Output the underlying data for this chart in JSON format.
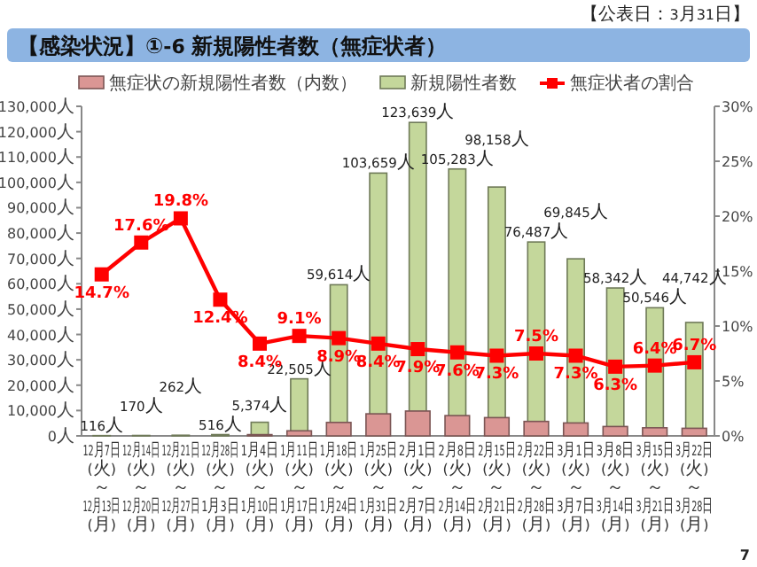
{
  "chart_data": {
    "type": "bar",
    "title": "【感染状況】①-6 新規陽性者数（無症状者）",
    "annotations": [
      "【公表日：3月31日】",
      "7"
    ],
    "categories": [
      "12月7日\n(火)\n～\n12月13日\n(月)",
      "12月14日\n(火)\n～\n12月20日\n(月)",
      "12月21日\n(火)\n～\n12月27日\n(月)",
      "12月28日\n(火)\n～\n1月3日\n(月)",
      "1月4日\n(火)\n～\n1月10日\n(月)",
      "1月11日\n(火)\n～\n1月17日\n(月)",
      "1月18日\n(火)\n～\n1月24日\n(月)",
      "1月25日\n(火)\n～\n1月31日\n(月)",
      "2月1日\n(火)\n～\n2月7日\n(月)",
      "2月8日\n(火)\n～\n2月14日\n(月)",
      "2月15日\n(火)\n～\n2月21日\n(月)",
      "2月22日\n(火)\n～\n2月28日\n(月)",
      "3月1日\n(火)\n～\n3月7日\n(月)",
      "3月8日\n(火)\n～\n3月14日\n(月)",
      "3月15日\n(火)\n～\n3月21日\n(月)",
      "3月22日\n(火)\n～\n3月28日\n(月)"
    ],
    "series": [
      {
        "name": "無症状の新規陽性者数（内数）",
        "color": "#da9694",
        "values": [
          null,
          null,
          null,
          null,
          500,
          2000,
          5300,
          8700,
          9800,
          8000,
          7200,
          5700,
          5100,
          3700,
          3200,
          3000
        ]
      },
      {
        "name": "新規陽性者数",
        "color": "#c4d79b",
        "values": [
          116,
          170,
          262,
          516,
          5374,
          22505,
          59614,
          103659,
          123639,
          105283,
          98158,
          76487,
          69845,
          58342,
          50546,
          44742
        ],
        "value_labels": [
          "116人",
          "170人",
          "262人",
          "516人",
          "5,374人",
          "22,505人",
          "59,614人",
          "103,659人",
          "123,639人",
          "105,283人",
          "98,158人",
          "76,487人",
          "69,845人",
          "58,342人",
          "50,546人",
          "44,742人"
        ]
      },
      {
        "name": "無症状者の割合",
        "type": "line",
        "axis": "y2",
        "color": "#ff0000",
        "values": [
          14.7,
          17.6,
          19.8,
          12.4,
          8.4,
          9.1,
          8.9,
          8.4,
          7.9,
          7.6,
          7.3,
          7.5,
          7.3,
          6.3,
          6.4,
          6.7
        ],
        "value_labels": [
          "14.7%",
          "17.6%",
          "19.8%",
          "12.4%",
          "8.4%",
          "9.1%",
          "8.9%",
          "8.4%",
          "7.9%",
          "7.6%",
          "7.3%",
          "7.5%",
          "7.3%",
          "6.3%",
          "6.4%",
          "6.7%"
        ]
      }
    ],
    "ylim": [
      0,
      130000
    ],
    "yticks": [
      {
        "value": 0,
        "label": "0人"
      },
      {
        "value": 10000,
        "label": "10,000人"
      },
      {
        "value": 20000,
        "label": "20,000人"
      },
      {
        "value": 30000,
        "label": "30,000人"
      },
      {
        "value": 40000,
        "label": "40,000人"
      },
      {
        "value": 50000,
        "label": "50,000人"
      },
      {
        "value": 60000,
        "label": "60,000人"
      },
      {
        "value": 70000,
        "label": "70,000人"
      },
      {
        "value": 80000,
        "label": "80,000人"
      },
      {
        "value": 90000,
        "label": "90,000人"
      },
      {
        "value": 100000,
        "label": "100,000人"
      },
      {
        "value": 110000,
        "label": "110,000人"
      },
      {
        "value": 120000,
        "label": "120,000人"
      },
      {
        "value": 130000,
        "label": "130,000人"
      }
    ],
    "y2lim": [
      0,
      30
    ],
    "y2ticks": [
      {
        "value": 0,
        "label": "0%"
      },
      {
        "value": 5,
        "label": "5%"
      },
      {
        "value": 10,
        "label": "10%"
      },
      {
        "value": 15,
        "label": "15%"
      },
      {
        "value": 20,
        "label": "20%"
      },
      {
        "value": 25,
        "label": "25%"
      },
      {
        "value": 30,
        "label": "30%"
      }
    ],
    "legend": "top",
    "marker": "square",
    "grid": false
  }
}
